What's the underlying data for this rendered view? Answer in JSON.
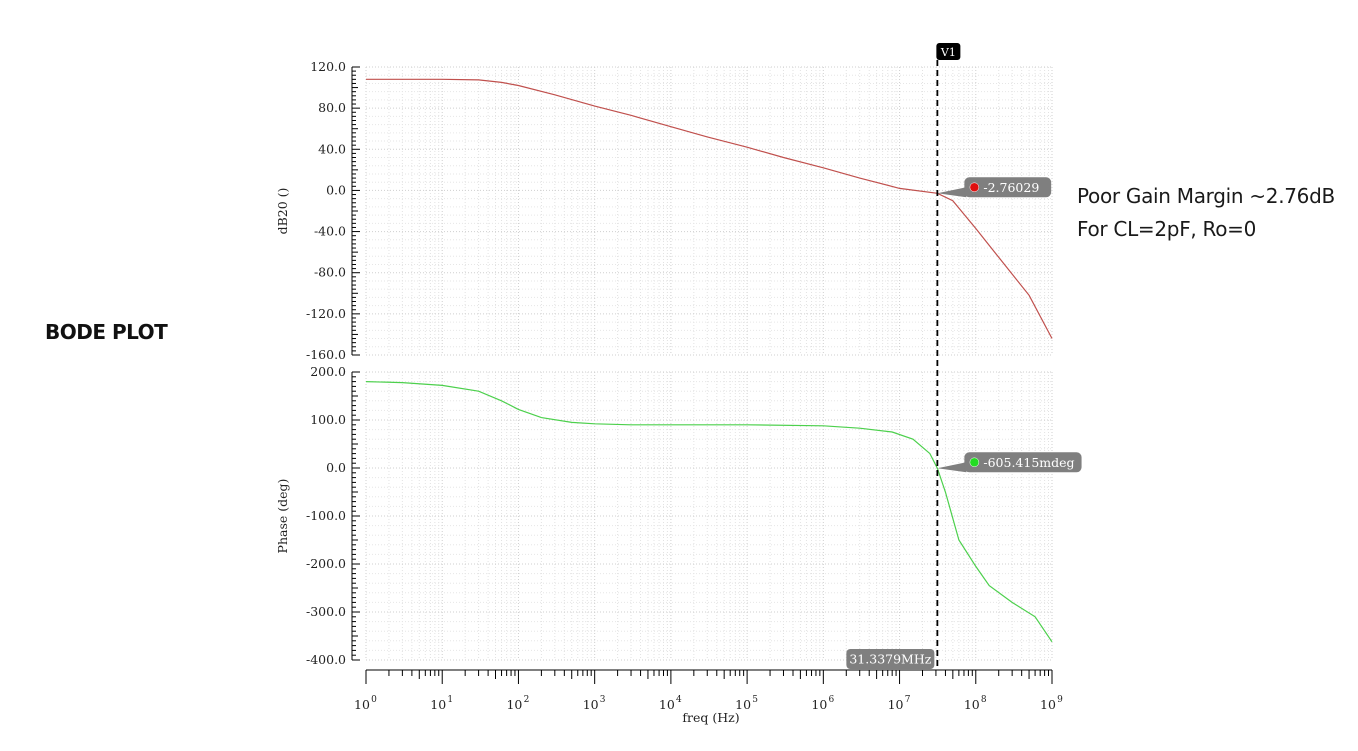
{
  "annotations": {
    "left_label": "BODE PLOT",
    "note_line1": "Poor Gain Margin ~2.76dB",
    "note_line2": "For CL=2pF, Ro=0"
  },
  "colors": {
    "magnitude": "#c0504d",
    "phase": "#4cd04c",
    "cursor": "#000000",
    "badge": "#7f7f7f"
  },
  "chart_data": [
    {
      "type": "line",
      "panel": "magnitude",
      "xlabel": "freq (Hz)",
      "ylabel": "dB20 ()",
      "xscale": "log",
      "xlim": [
        1,
        1000000000
      ],
      "ylim": [
        -160,
        120
      ],
      "yticks": [
        "120.0",
        "80.0",
        "40.0",
        "0.0",
        "-40.0",
        "-80.0",
        "-120.0",
        "-160.0"
      ],
      "grid": true,
      "series": [
        {
          "x": [
            1,
            10,
            30,
            60,
            100,
            300,
            1000,
            3000,
            10000,
            30000,
            100000,
            300000,
            1000000,
            3000000,
            10000000,
            31337900,
            50000000,
            100000000,
            200000000,
            500000000,
            1000000000
          ],
          "values": [
            108,
            108,
            107.5,
            105,
            102,
            93,
            82,
            73,
            62,
            52,
            42,
            32,
            22,
            12,
            2,
            -2.76,
            -10,
            -37,
            -65,
            -102,
            -144
          ]
        }
      ],
      "marker": {
        "x": 31337900,
        "y": -2.76029,
        "label": "-2.76029"
      }
    },
    {
      "type": "line",
      "panel": "phase",
      "xlabel": "freq (Hz)",
      "ylabel": "Phase (deg)",
      "xscale": "log",
      "xlim": [
        1,
        1000000000
      ],
      "ylim": [
        -400,
        200
      ],
      "yticks": [
        "200.0",
        "100.0",
        "0.0",
        "-100.0",
        "-200.0",
        "-300.0",
        "-400.0"
      ],
      "xticks": [
        {
          "base": "10",
          "exp": "0"
        },
        {
          "base": "10",
          "exp": "1"
        },
        {
          "base": "10",
          "exp": "2"
        },
        {
          "base": "10",
          "exp": "3"
        },
        {
          "base": "10",
          "exp": "4"
        },
        {
          "base": "10",
          "exp": "5"
        },
        {
          "base": "10",
          "exp": "6"
        },
        {
          "base": "10",
          "exp": "7"
        },
        {
          "base": "10",
          "exp": "8"
        },
        {
          "base": "10",
          "exp": "9"
        }
      ],
      "grid": true,
      "series": [
        {
          "x": [
            1,
            3,
            10,
            30,
            60,
            100,
            200,
            500,
            1000,
            3000,
            10000,
            100000,
            1000000,
            3000000,
            8000000,
            15000000,
            25000000,
            31337900,
            40000000,
            60000000,
            100000000,
            150000000,
            300000000,
            600000000,
            1000000000
          ],
          "values": [
            180,
            178,
            172,
            160,
            140,
            122,
            105,
            95,
            92,
            90,
            90,
            90,
            88,
            83,
            75,
            60,
            30,
            -0.6,
            -50,
            -150,
            -205,
            -245,
            -280,
            -310,
            -362
          ]
        }
      ],
      "marker": {
        "x": 31337900,
        "y": -0.605415,
        "label": "-605.415mdeg"
      }
    }
  ],
  "cursor": {
    "name": "V1",
    "x": 31337900,
    "label": "31.3379MHz"
  }
}
